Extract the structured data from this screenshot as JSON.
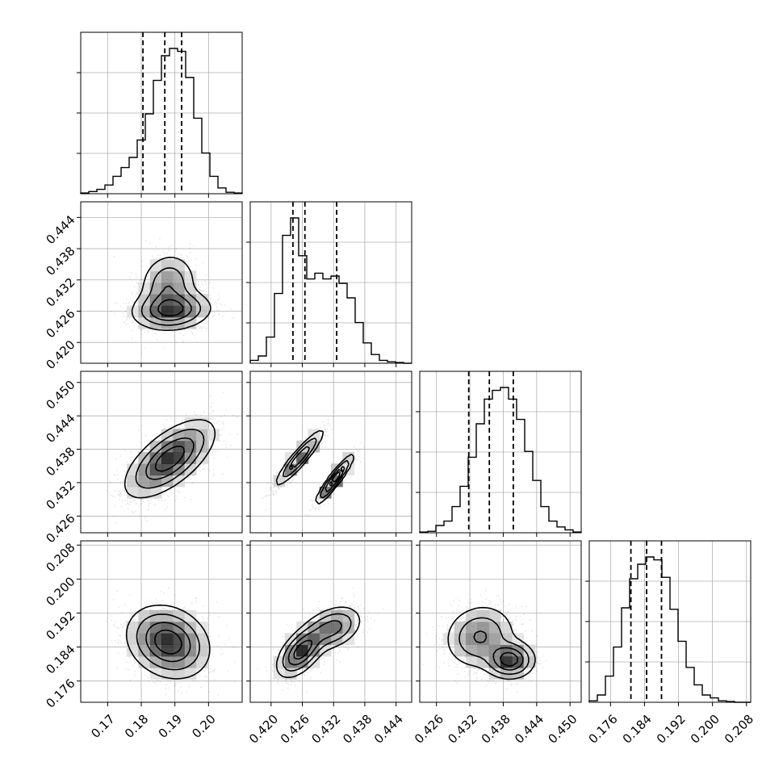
{
  "chart_data": {
    "type": "corner",
    "grid": true,
    "parameters": [
      {
        "range": [
          0.162,
          0.21
        ],
        "ticks": [
          "0.17",
          "0.18",
          "0.19",
          "0.20"
        ],
        "quantiles": [
          0.1805,
          0.187,
          0.192
        ]
      },
      {
        "range": [
          0.416,
          0.447
        ],
        "ticks": [
          "0.420",
          "0.426",
          "0.432",
          "0.438",
          "0.444"
        ],
        "quantiles": [
          0.4242,
          0.4265,
          0.4326
        ]
      },
      {
        "range": [
          0.423,
          0.452
        ],
        "ticks": [
          "0.426",
          "0.432",
          "0.438",
          "0.444",
          "0.450"
        ],
        "quantiles": [
          0.4318,
          0.4355,
          0.4398
        ]
      },
      {
        "range": [
          0.171,
          0.209
        ],
        "ticks": [
          "0.176",
          "0.184",
          "0.192",
          "0.200",
          "0.208"
        ],
        "quantiles": [
          0.1808,
          0.1845,
          0.188
        ]
      }
    ],
    "histograms": [
      [
        0.005,
        0.015,
        0.03,
        0.06,
        0.12,
        0.18,
        0.25,
        0.37,
        0.55,
        0.78,
        0.95,
        1.0,
        0.98,
        0.8,
        0.52,
        0.28,
        0.12,
        0.04,
        0.01,
        0.005
      ],
      [
        0.02,
        0.05,
        0.18,
        0.48,
        0.88,
        1.0,
        0.74,
        0.58,
        0.62,
        0.58,
        0.6,
        0.55,
        0.45,
        0.28,
        0.14,
        0.06,
        0.02,
        0.01,
        0.005,
        0.0
      ],
      [
        0.005,
        0.01,
        0.05,
        0.08,
        0.18,
        0.32,
        0.52,
        0.75,
        0.92,
        0.98,
        1.0,
        0.92,
        0.78,
        0.56,
        0.36,
        0.18,
        0.08,
        0.04,
        0.02,
        0.005
      ],
      [
        0.01,
        0.05,
        0.18,
        0.38,
        0.65,
        0.85,
        0.95,
        1.0,
        0.98,
        0.86,
        0.64,
        0.42,
        0.24,
        0.12,
        0.05,
        0.03,
        0.01,
        0.005,
        0.0,
        0.0
      ]
    ],
    "joint_modes": {
      "1-0": [
        {
          "mx": 0.188,
          "my": 0.4312,
          "sx": 0.0042,
          "sy": 0.003,
          "rho": 0.1,
          "w": 0.4
        },
        {
          "mx": 0.189,
          "my": 0.4262,
          "sx": 0.0058,
          "sy": 0.0019,
          "rho": 0.1,
          "w": 0.6
        }
      ],
      "2-0": [
        {
          "mx": 0.1885,
          "my": 0.4363,
          "sx": 0.0065,
          "sy": 0.0034,
          "rho": 0.65,
          "w": 1.0
        }
      ],
      "2-1": [
        {
          "mx": 0.4255,
          "my": 0.4365,
          "sx": 0.0023,
          "sy": 0.0025,
          "rho": 0.92,
          "w": 0.55
        },
        {
          "mx": 0.4322,
          "my": 0.4326,
          "sx": 0.0018,
          "sy": 0.0022,
          "rho": 0.93,
          "w": 0.45
        }
      ],
      "3-0": [
        {
          "mx": 0.188,
          "my": 0.1852,
          "sx": 0.006,
          "sy": 0.0042,
          "rho": -0.2,
          "w": 1.0
        }
      ],
      "3-1": [
        {
          "mx": 0.4258,
          "my": 0.183,
          "sx": 0.0023,
          "sy": 0.003,
          "rho": 0.55,
          "w": 0.55
        },
        {
          "mx": 0.4318,
          "my": 0.1885,
          "sx": 0.0028,
          "sy": 0.0026,
          "rho": 0.35,
          "w": 0.45
        }
      ],
      "3-2": [
        {
          "mx": 0.4338,
          "my": 0.1865,
          "sx": 0.0032,
          "sy": 0.0038,
          "rho": 0.1,
          "w": 0.6
        },
        {
          "mx": 0.4392,
          "my": 0.181,
          "sx": 0.0022,
          "sy": 0.0022,
          "rho": 0.0,
          "w": 0.4
        }
      ]
    }
  }
}
